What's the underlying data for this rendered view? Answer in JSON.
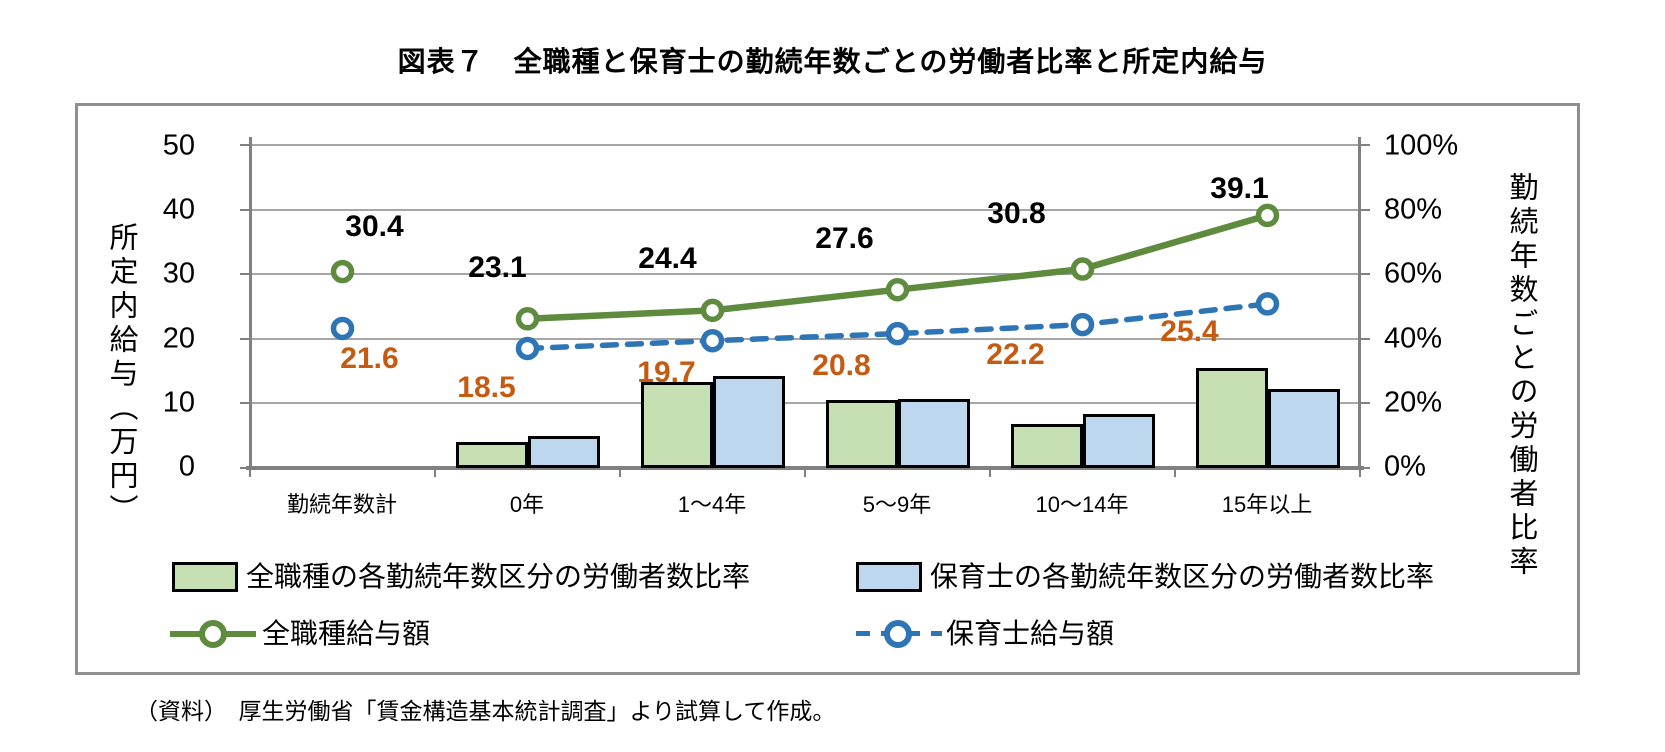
{
  "title": "図表７　全職種と保育士の勤続年数ごとの労働者比率と所定内給与",
  "source_note": "（資料）　厚生労働省「賃金構造基本統計調査」より試算して作成。",
  "left_axis": {
    "label": "所定内給与（万円）",
    "ticks": [
      "50",
      "40",
      "30",
      "20",
      "10",
      "0"
    ]
  },
  "right_axis": {
    "label": "勤続年数ごとの労働者比率",
    "ticks": [
      "100%",
      "80%",
      "60%",
      "40%",
      "20%",
      "0%"
    ]
  },
  "chart_data": {
    "type": "combo (grouped bars on right % axis + lines on left axis)",
    "categories": [
      "勤続年数計",
      "0年",
      "1～4年",
      "5～9年",
      "10～14年",
      "15年以上"
    ],
    "left_axis_range": [
      0,
      50
    ],
    "right_axis_range_pct": [
      0,
      100
    ],
    "grid": "horizontal gridlines every 10 (left) / 20% (right)",
    "legend_position": "bottom",
    "bar_series": [
      {
        "name": "全職種の各勤続年数区分の労働者数比率",
        "fill": "#C6E0B4",
        "border": "#000000",
        "axis": "right",
        "values_pct": [
          null,
          8.2,
          26.5,
          20.9,
          13.7,
          30.9
        ]
      },
      {
        "name": "保育士の各勤続年数区分の労働者数比率",
        "fill": "#BDD7EE",
        "border": "#000000",
        "axis": "right",
        "values_pct": [
          null,
          9.9,
          28.5,
          21.4,
          16.7,
          24.5
        ]
      }
    ],
    "line_series": [
      {
        "name": "全職種給与額",
        "color": "#5E8B3D",
        "dash": "solid",
        "axis": "left",
        "values": [
          30.4,
          23.1,
          24.4,
          27.6,
          30.8,
          39.1
        ],
        "labels": [
          "30.4",
          "23.1",
          "24.4",
          "27.6",
          "30.8",
          "39.1"
        ],
        "label_color": "#000000",
        "first_point_disconnected": true
      },
      {
        "name": "保育士給与額",
        "color": "#2E75B6",
        "dash": "dashed",
        "axis": "left",
        "values": [
          21.6,
          18.5,
          19.7,
          20.8,
          22.2,
          25.4
        ],
        "labels": [
          "21.6",
          "18.5",
          "19.7",
          "20.8",
          "22.2",
          "25.4"
        ],
        "label_color": "#C55A11",
        "first_point_disconnected": true
      }
    ]
  },
  "colors": {
    "grid": "#A6A6A6",
    "axis": "#808080",
    "frame": "#8F8F8F"
  }
}
